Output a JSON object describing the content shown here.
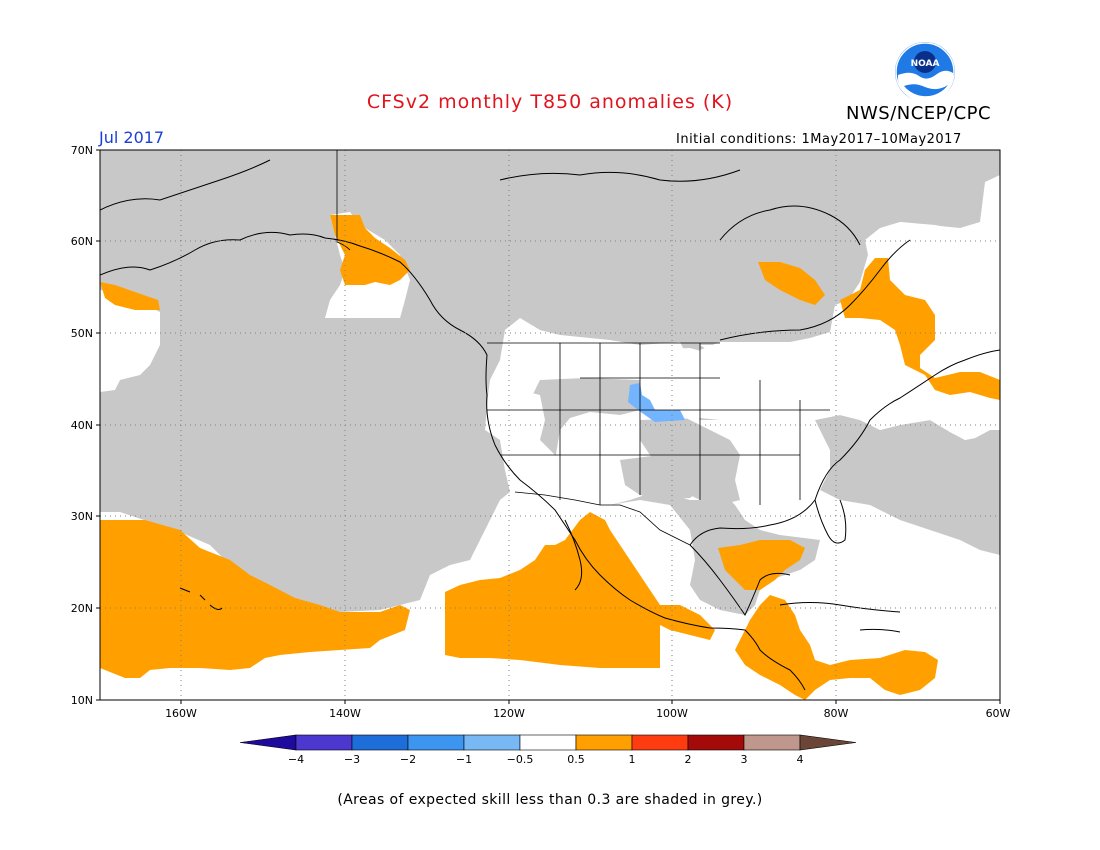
{
  "header": {
    "title": "CFSv2 monthly T850 anomalies (K)",
    "agency": "NWS/NCEP/CPC",
    "logo_text": "NOAA",
    "month": "Jul 2017",
    "initial_conditions": "Initial conditions: 1May2017–10May2017"
  },
  "map": {
    "lat_labels": [
      "70N",
      "60N",
      "50N",
      "40N",
      "30N",
      "20N",
      "10N"
    ],
    "lon_labels": [
      "160W",
      "140W",
      "120W",
      "100W",
      "80W",
      "60W"
    ],
    "legend_colors": {
      "skill_below_threshold": "#c8c8c8",
      "near_normal": "#ffffff",
      "warm_0_5_to_1": "#ffa000",
      "cool_-1_to_-0_5": "#73b4ff"
    }
  },
  "colorbar": {
    "labels": [
      "−4",
      "−3",
      "−2",
      "−1",
      "−0.5",
      "0.5",
      "1",
      "2",
      "3",
      "4"
    ],
    "colors": [
      "#1e0a9c",
      "#4c38cf",
      "#1e6ed9",
      "#3c96f0",
      "#78b9f5",
      "#ffffff",
      "#ffa000",
      "#ff3c10",
      "#a50a0a",
      "#c0978c",
      "#6b4537"
    ]
  },
  "footer": {
    "note": "(Areas of expected skill less than 0.3 are shaded in grey.)"
  }
}
